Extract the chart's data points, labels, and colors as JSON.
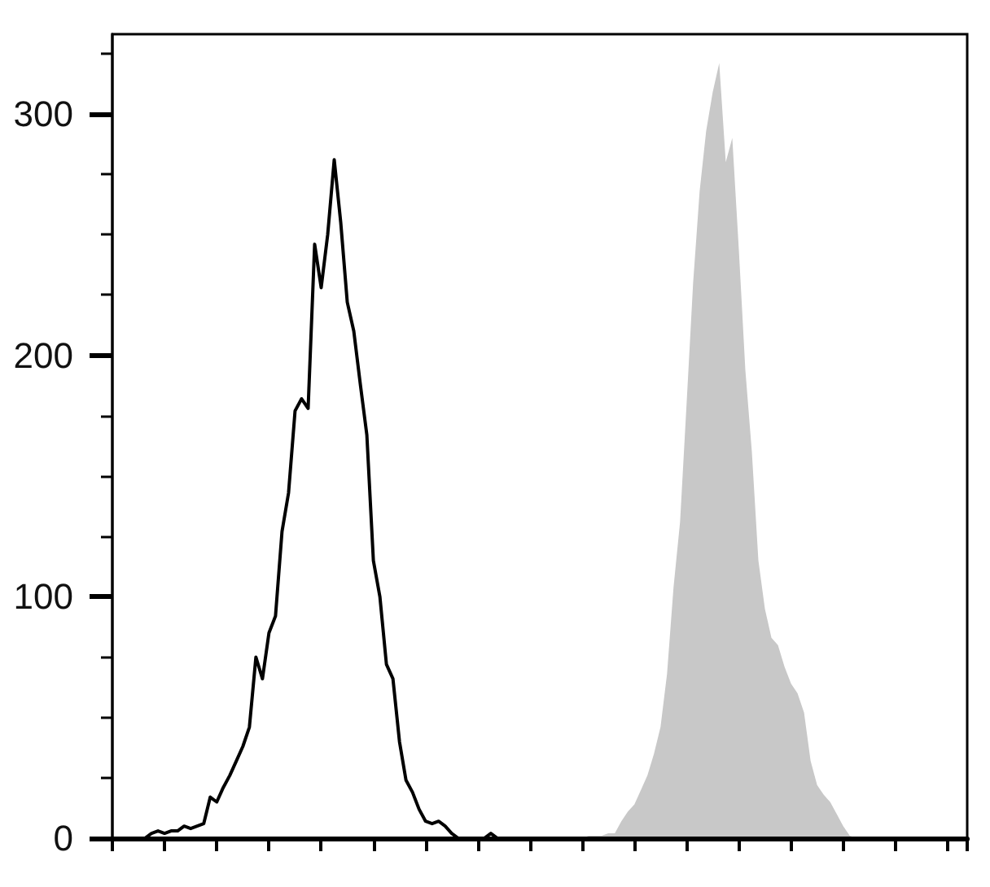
{
  "chart_data": {
    "type": "line",
    "categories": [
      null,
      null,
      null,
      null,
      null,
      null,
      null,
      null,
      null,
      null,
      null,
      null,
      null,
      null,
      null,
      null,
      null,
      null,
      null,
      null,
      null,
      null,
      null,
      null,
      null,
      null,
      null,
      null,
      null,
      null,
      null,
      null,
      null,
      null,
      null,
      null,
      null,
      null,
      null,
      null,
      null,
      null,
      null,
      null,
      null,
      null,
      null,
      null,
      null,
      null,
      null,
      null,
      null,
      null,
      null,
      null,
      null,
      null,
      null,
      null,
      null,
      null,
      null,
      null,
      null,
      null,
      null,
      null,
      null,
      null,
      null,
      null,
      null,
      null,
      null,
      null,
      null,
      null,
      null,
      null,
      null,
      null,
      null,
      null,
      null,
      null,
      null,
      null,
      null,
      null,
      null,
      null,
      null,
      null,
      null,
      null,
      null,
      null,
      null,
      null,
      null,
      null,
      null,
      null,
      null,
      null,
      null,
      null,
      null,
      null,
      null,
      null,
      null,
      null,
      null,
      null,
      null,
      null,
      null,
      null,
      null,
      null,
      null,
      null,
      null,
      null,
      null,
      null,
      null,
      null,
      null,
      null
    ],
    "series": [
      {
        "color": "#000000",
        "values": [
          0,
          0,
          0,
          0,
          0,
          0,
          2,
          3,
          2,
          3,
          3,
          5,
          4,
          5,
          6,
          17,
          15,
          21,
          26,
          32,
          38,
          46,
          75,
          66,
          85,
          92,
          127,
          143,
          177,
          182,
          178,
          246,
          228,
          250,
          281,
          255,
          222,
          210,
          188,
          167,
          115,
          100,
          72,
          66,
          40,
          24,
          19,
          12,
          7,
          6,
          7,
          5,
          2,
          0,
          0,
          0,
          0,
          0,
          2,
          0,
          0,
          0,
          0,
          0,
          0,
          0,
          0,
          0,
          0,
          0,
          0,
          0,
          0,
          0,
          0,
          0,
          0,
          0,
          0,
          0,
          0,
          0,
          0,
          0,
          0,
          0,
          0,
          0,
          0,
          0,
          0,
          0,
          0,
          0,
          0,
          0,
          0,
          0,
          0,
          0,
          0,
          0,
          0,
          0,
          0,
          0,
          0,
          0,
          0,
          0,
          0,
          0,
          0,
          0,
          0,
          0,
          0,
          0,
          0,
          0,
          0,
          0,
          0,
          0,
          0,
          0,
          0,
          0,
          0,
          0,
          0,
          0
        ]
      },
      {
        "type": "area",
        "color": "#c8c8c8",
        "values": [
          0,
          0,
          0,
          0,
          0,
          0,
          0,
          0,
          0,
          0,
          0,
          0,
          0,
          0,
          0,
          0,
          0,
          0,
          0,
          0,
          0,
          0,
          0,
          0,
          0,
          0,
          0,
          0,
          0,
          0,
          0,
          0,
          0,
          0,
          0,
          0,
          0,
          0,
          0,
          0,
          0,
          0,
          0,
          0,
          0,
          0,
          0,
          0,
          0,
          0,
          0,
          0,
          0,
          0,
          0,
          0,
          0,
          0,
          0,
          0,
          0,
          0,
          0,
          0,
          0,
          0,
          0,
          0,
          0,
          0,
          0,
          0,
          0,
          1,
          1,
          1,
          2,
          2,
          7,
          11,
          14,
          20,
          26,
          35,
          46,
          68,
          104,
          131,
          180,
          230,
          268,
          293,
          309,
          321,
          280,
          290,
          244,
          194,
          160,
          115,
          95,
          83,
          80,
          71,
          64,
          60,
          52,
          32,
          22,
          18,
          15,
          10,
          5,
          1,
          0,
          0,
          0,
          0,
          0,
          0,
          0,
          0,
          0,
          0,
          0,
          0,
          0,
          0,
          0,
          0,
          0,
          0
        ]
      }
    ],
    "ylim": [
      0,
      333
    ],
    "yticks": [
      0,
      {
        "value": 25,
        "label": null
      },
      {
        "value": 50,
        "label": null
      },
      {
        "value": 75,
        "label": null
      },
      100,
      {
        "value": 125,
        "label": null
      },
      {
        "value": 150,
        "label": null
      },
      {
        "value": 175,
        "label": null
      },
      200,
      {
        "value": 225,
        "label": null
      },
      {
        "value": 250,
        "label": null
      },
      {
        "value": 275,
        "label": null
      },
      300,
      {
        "value": 325,
        "label": null
      }
    ],
    "tick_labels": "y"
  }
}
